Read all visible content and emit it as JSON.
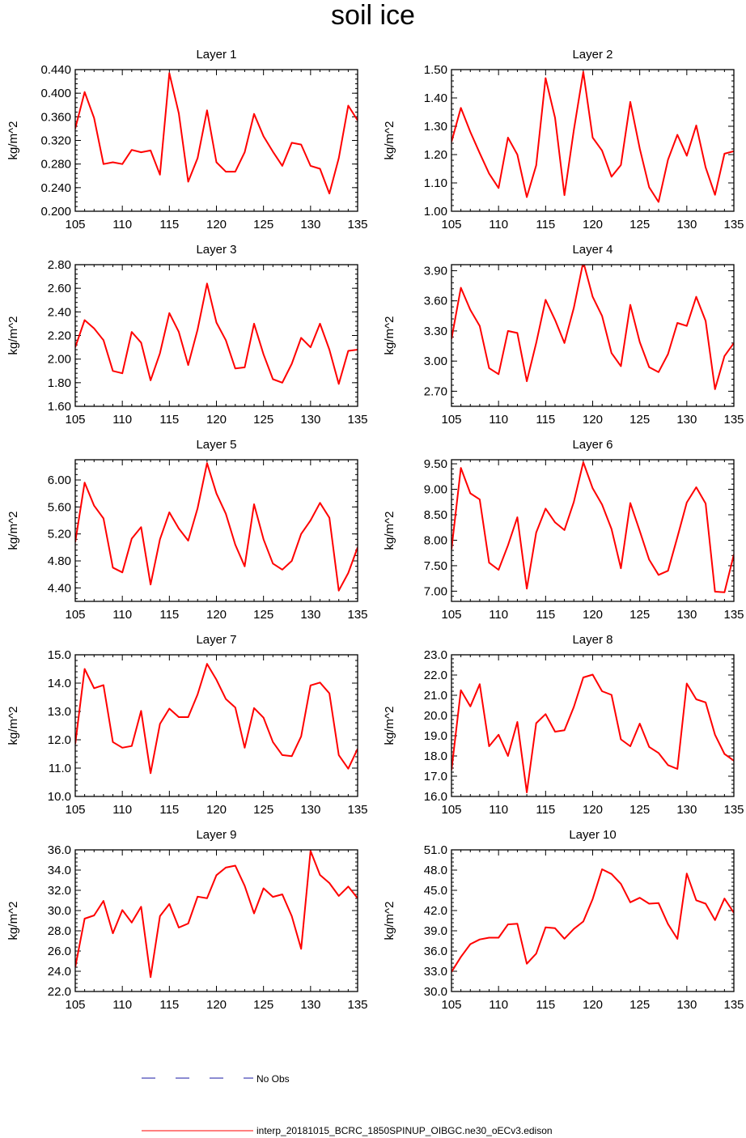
{
  "title": "soil ice",
  "legend": {
    "obs_label": "No Obs",
    "obs_color": "#1a1aa6",
    "model_label": "interp_20181015_BCRC_1850SPINUP_OIBGC.ne30_oECv3.edison",
    "model_color": "#ff0000"
  },
  "chart_data": [
    {
      "type": "line",
      "title": "Layer 1",
      "ylabel": "kg/m^2",
      "xlim": [
        105,
        135
      ],
      "ylim": [
        0.2,
        0.44
      ],
      "xticks": [
        "105",
        "110",
        "115",
        "120",
        "125",
        "130",
        "135"
      ],
      "yticks": [
        "0.200",
        "0.240",
        "0.280",
        "0.320",
        "0.360",
        "0.400",
        "0.440"
      ],
      "x": [
        105,
        106,
        107,
        108,
        109,
        110,
        111,
        112,
        113,
        114,
        115,
        116,
        117,
        118,
        119,
        120,
        121,
        122,
        123,
        124,
        125,
        126,
        127,
        128,
        129,
        130,
        131,
        132,
        133,
        134,
        135
      ],
      "values": [
        0.34,
        0.402,
        0.358,
        0.28,
        0.283,
        0.28,
        0.304,
        0.3,
        0.303,
        0.262,
        0.434,
        0.366,
        0.25,
        0.29,
        0.371,
        0.283,
        0.267,
        0.267,
        0.3,
        0.365,
        0.327,
        0.301,
        0.277,
        0.316,
        0.313,
        0.277,
        0.272,
        0.23,
        0.29,
        0.379,
        0.354
      ]
    },
    {
      "type": "line",
      "title": "Layer 2",
      "ylabel": "kg/m^2",
      "xlim": [
        105,
        135
      ],
      "ylim": [
        1.0,
        1.5
      ],
      "xticks": [
        "105",
        "110",
        "115",
        "120",
        "125",
        "130",
        "135"
      ],
      "yticks": [
        "1.00",
        "1.10",
        "1.20",
        "1.30",
        "1.40",
        "1.50"
      ],
      "x": [
        105,
        106,
        107,
        108,
        109,
        110,
        111,
        112,
        113,
        114,
        115,
        116,
        117,
        118,
        119,
        120,
        121,
        122,
        123,
        124,
        125,
        126,
        127,
        128,
        129,
        130,
        131,
        132,
        133,
        134,
        135
      ],
      "values": [
        1.245,
        1.365,
        1.28,
        1.205,
        1.133,
        1.082,
        1.26,
        1.2,
        1.05,
        1.162,
        1.47,
        1.33,
        1.057,
        1.286,
        1.492,
        1.26,
        1.214,
        1.122,
        1.163,
        1.386,
        1.221,
        1.085,
        1.033,
        1.182,
        1.27,
        1.196,
        1.303,
        1.155,
        1.058,
        1.203,
        1.212
      ]
    },
    {
      "type": "line",
      "title": "Layer 3",
      "ylabel": "kg/m^2",
      "xlim": [
        105,
        135
      ],
      "ylim": [
        1.6,
        2.8
      ],
      "xticks": [
        "105",
        "110",
        "115",
        "120",
        "125",
        "130",
        "135"
      ],
      "yticks": [
        "1.60",
        "1.80",
        "2.00",
        "2.20",
        "2.40",
        "2.60",
        "2.80"
      ],
      "x": [
        105,
        106,
        107,
        108,
        109,
        110,
        111,
        112,
        113,
        114,
        115,
        116,
        117,
        118,
        119,
        120,
        121,
        122,
        123,
        124,
        125,
        126,
        127,
        128,
        129,
        130,
        131,
        132,
        133,
        134,
        135
      ],
      "values": [
        2.1,
        2.33,
        2.26,
        2.16,
        1.9,
        1.88,
        2.23,
        2.14,
        1.82,
        2.05,
        2.39,
        2.23,
        1.95,
        2.25,
        2.64,
        2.31,
        2.16,
        1.92,
        1.93,
        2.3,
        2.04,
        1.83,
        1.8,
        1.96,
        2.18,
        2.1,
        2.3,
        2.08,
        1.79,
        2.07,
        2.08
      ]
    },
    {
      "type": "line",
      "title": "Layer 4",
      "ylabel": "kg/m^2",
      "xlim": [
        105,
        135
      ],
      "ylim": [
        2.55,
        3.96
      ],
      "xticks": [
        "105",
        "110",
        "115",
        "120",
        "125",
        "130",
        "135"
      ],
      "yticks": [
        "2.70",
        "3.00",
        "3.30",
        "3.60",
        "3.90"
      ],
      "x": [
        105,
        106,
        107,
        108,
        109,
        110,
        111,
        112,
        113,
        114,
        115,
        116,
        117,
        118,
        119,
        120,
        121,
        122,
        123,
        124,
        125,
        126,
        127,
        128,
        129,
        130,
        131,
        132,
        133,
        134,
        135
      ],
      "values": [
        3.22,
        3.73,
        3.51,
        3.35,
        2.93,
        2.87,
        3.3,
        3.28,
        2.8,
        3.18,
        3.61,
        3.41,
        3.18,
        3.53,
        3.99,
        3.64,
        3.45,
        3.08,
        2.95,
        3.56,
        3.19,
        2.94,
        2.89,
        3.07,
        3.38,
        3.35,
        3.64,
        3.4,
        2.72,
        3.05,
        3.18
      ]
    },
    {
      "type": "line",
      "title": "Layer 5",
      "ylabel": "kg/m^2",
      "xlim": [
        105,
        135
      ],
      "ylim": [
        4.2,
        6.3
      ],
      "xticks": [
        "105",
        "110",
        "115",
        "120",
        "125",
        "130",
        "135"
      ],
      "yticks": [
        "4.40",
        "4.80",
        "5.20",
        "5.60",
        "6.00"
      ],
      "x": [
        105,
        106,
        107,
        108,
        109,
        110,
        111,
        112,
        113,
        114,
        115,
        116,
        117,
        118,
        119,
        120,
        121,
        122,
        123,
        124,
        125,
        126,
        127,
        128,
        129,
        130,
        131,
        132,
        133,
        134,
        135
      ],
      "values": [
        5.08,
        5.96,
        5.62,
        5.43,
        4.7,
        4.63,
        5.13,
        5.3,
        4.45,
        5.12,
        5.52,
        5.28,
        5.1,
        5.58,
        6.25,
        5.8,
        5.5,
        5.04,
        4.72,
        5.64,
        5.12,
        4.76,
        4.67,
        4.8,
        5.2,
        5.4,
        5.66,
        5.44,
        4.36,
        4.62,
        5.0
      ]
    },
    {
      "type": "line",
      "title": "Layer 6",
      "ylabel": "kg/m^2",
      "xlim": [
        105,
        135
      ],
      "ylim": [
        6.8,
        9.58
      ],
      "xticks": [
        "105",
        "110",
        "115",
        "120",
        "125",
        "130",
        "135"
      ],
      "yticks": [
        "7.00",
        "7.50",
        "8.00",
        "8.50",
        "9.00",
        "9.50"
      ],
      "x": [
        105,
        106,
        107,
        108,
        109,
        110,
        111,
        112,
        113,
        114,
        115,
        116,
        117,
        118,
        119,
        120,
        121,
        122,
        123,
        124,
        125,
        126,
        127,
        128,
        129,
        130,
        131,
        132,
        133,
        134,
        135
      ],
      "values": [
        7.82,
        9.42,
        8.92,
        8.8,
        7.56,
        7.42,
        7.9,
        8.45,
        7.05,
        8.15,
        8.62,
        8.35,
        8.2,
        8.75,
        9.53,
        9.02,
        8.7,
        8.22,
        7.45,
        8.73,
        8.18,
        7.62,
        7.32,
        7.4,
        8.06,
        8.74,
        9.04,
        8.72,
        6.99,
        6.98,
        7.72
      ]
    },
    {
      "type": "line",
      "title": "Layer 7",
      "ylabel": "kg/m^2",
      "xlim": [
        105,
        135
      ],
      "ylim": [
        10.0,
        15.0
      ],
      "xticks": [
        "105",
        "110",
        "115",
        "120",
        "125",
        "130",
        "135"
      ],
      "yticks": [
        "10.0",
        "11.0",
        "12.0",
        "13.0",
        "14.0",
        "15.0"
      ],
      "x": [
        105,
        106,
        107,
        108,
        109,
        110,
        111,
        112,
        113,
        114,
        115,
        116,
        117,
        118,
        119,
        120,
        121,
        122,
        123,
        124,
        125,
        126,
        127,
        128,
        129,
        130,
        131,
        132,
        133,
        134,
        135
      ],
      "values": [
        11.85,
        14.5,
        13.82,
        13.93,
        11.92,
        11.72,
        11.78,
        13.02,
        10.82,
        12.56,
        13.1,
        12.8,
        12.8,
        13.6,
        14.68,
        14.12,
        13.44,
        13.14,
        11.72,
        13.12,
        12.78,
        11.92,
        11.46,
        11.42,
        12.12,
        13.92,
        14.02,
        13.64,
        11.46,
        10.98,
        11.68
      ]
    },
    {
      "type": "line",
      "title": "Layer 8",
      "ylabel": "kg/m^2",
      "xlim": [
        105,
        135
      ],
      "ylim": [
        16.0,
        23.0
      ],
      "xticks": [
        "105",
        "110",
        "115",
        "120",
        "125",
        "130",
        "135"
      ],
      "yticks": [
        "16.0",
        "17.0",
        "18.0",
        "19.0",
        "20.0",
        "21.0",
        "22.0",
        "23.0"
      ],
      "x": [
        105,
        106,
        107,
        108,
        109,
        110,
        111,
        112,
        113,
        114,
        115,
        116,
        117,
        118,
        119,
        120,
        121,
        122,
        123,
        124,
        125,
        126,
        127,
        128,
        129,
        130,
        131,
        132,
        133,
        134,
        135
      ],
      "values": [
        17.3,
        21.25,
        20.45,
        21.55,
        18.48,
        19.05,
        18.0,
        19.68,
        16.2,
        19.62,
        20.07,
        19.2,
        19.27,
        20.42,
        21.88,
        22.02,
        21.2,
        21.02,
        18.82,
        18.48,
        19.6,
        18.45,
        18.15,
        17.55,
        17.36,
        21.58,
        20.8,
        20.65,
        19.05,
        18.1,
        17.77
      ]
    },
    {
      "type": "line",
      "title": "Layer 9",
      "ylabel": "kg/m^2",
      "xlim": [
        105,
        135
      ],
      "ylim": [
        22.0,
        36.0
      ],
      "xticks": [
        "105",
        "110",
        "115",
        "120",
        "125",
        "130",
        "135"
      ],
      "yticks": [
        "22.0",
        "24.0",
        "26.0",
        "28.0",
        "30.0",
        "32.0",
        "34.0",
        "36.0"
      ],
      "x": [
        105,
        106,
        107,
        108,
        109,
        110,
        111,
        112,
        113,
        114,
        115,
        116,
        117,
        118,
        119,
        120,
        121,
        122,
        123,
        124,
        125,
        126,
        127,
        128,
        129,
        130,
        131,
        132,
        133,
        134,
        135
      ],
      "values": [
        24.4,
        29.2,
        29.52,
        30.95,
        27.75,
        30.05,
        28.82,
        30.38,
        23.42,
        29.45,
        30.65,
        28.32,
        28.72,
        31.38,
        31.22,
        33.5,
        34.25,
        34.44,
        32.45,
        29.72,
        32.2,
        31.35,
        31.6,
        29.45,
        26.22,
        35.9,
        33.52,
        32.72,
        31.45,
        32.38,
        31.22
      ]
    },
    {
      "type": "line",
      "title": "Layer 10",
      "ylabel": "kg/m^2",
      "xlim": [
        105,
        135
      ],
      "ylim": [
        30.0,
        51.0
      ],
      "xticks": [
        "105",
        "110",
        "115",
        "120",
        "125",
        "130",
        "135"
      ],
      "yticks": [
        "30.0",
        "33.0",
        "36.0",
        "39.0",
        "42.0",
        "45.0",
        "48.0",
        "51.0"
      ],
      "x": [
        105,
        106,
        107,
        108,
        109,
        110,
        111,
        112,
        113,
        114,
        115,
        116,
        117,
        118,
        119,
        120,
        121,
        122,
        123,
        124,
        125,
        126,
        127,
        128,
        129,
        130,
        131,
        132,
        133,
        134,
        135
      ],
      "values": [
        32.9,
        35.12,
        37.02,
        37.72,
        37.98,
        37.98,
        39.95,
        40.05,
        34.12,
        35.62,
        39.52,
        39.38,
        37.82,
        39.28,
        40.38,
        43.72,
        48.12,
        47.42,
        45.95,
        43.22,
        43.9,
        43.02,
        43.12,
        40.0,
        37.8,
        47.48,
        43.52,
        43.02,
        40.58,
        43.78,
        41.68
      ]
    }
  ]
}
